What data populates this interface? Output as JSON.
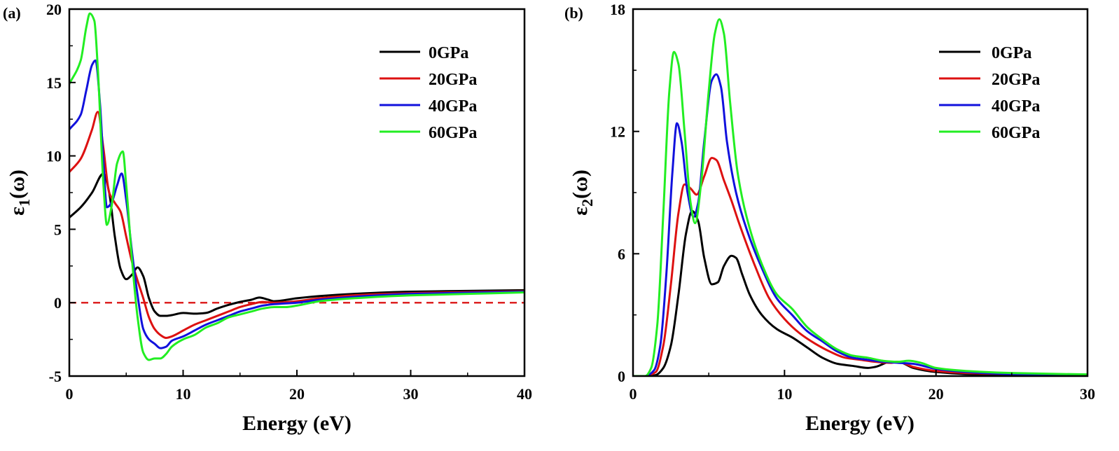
{
  "chart_data": [
    {
      "type": "line",
      "panel_label": "(a)",
      "ylabel": "ε1(ω)",
      "ylabel_parts": {
        "symbol": "ε",
        "subscript": "1",
        "suffix": "(ω)"
      },
      "xlabel": "Energy (eV)",
      "xlim": [
        0,
        40
      ],
      "ylim": [
        -5,
        20
      ],
      "xticks": [
        0,
        10,
        20,
        30,
        40
      ],
      "yticks": [
        -5,
        0,
        5,
        10,
        15,
        20
      ],
      "reference_line": {
        "y": 0,
        "style": "dashed",
        "color": "#dd2222"
      },
      "legend_position": "top-right",
      "series": [
        {
          "name": "0GPa",
          "color": "#000000",
          "x": [
            0,
            1,
            2,
            3,
            3.5,
            4,
            4.5,
            5,
            5.5,
            6,
            6.5,
            7,
            7.5,
            8,
            8.5,
            9,
            10,
            11,
            12,
            13,
            14,
            15,
            16,
            16.7,
            17.5,
            18,
            20,
            22,
            25,
            30,
            35,
            40
          ],
          "y": [
            5.8,
            6.5,
            7.5,
            8.8,
            7.5,
            4.5,
            2.3,
            1.6,
            1.9,
            2.4,
            1.8,
            0.3,
            -0.6,
            -0.9,
            -0.9,
            -0.85,
            -0.7,
            -0.75,
            -0.7,
            -0.4,
            -0.15,
            0.05,
            0.2,
            0.35,
            0.2,
            0.1,
            0.3,
            0.45,
            0.6,
            0.75,
            0.8,
            0.85
          ]
        },
        {
          "name": "20GPa",
          "color": "#dd1111",
          "x": [
            0,
            1,
            2,
            2.5,
            3,
            3.5,
            4,
            4.5,
            5,
            5.5,
            6,
            6.5,
            7,
            7.5,
            8,
            8.5,
            9,
            10,
            11,
            12,
            13,
            14,
            15,
            16,
            17,
            18,
            20,
            22,
            25,
            30,
            35,
            40
          ],
          "y": [
            8.9,
            9.8,
            11.8,
            13.0,
            10.5,
            7.5,
            6.8,
            6.2,
            4.5,
            2.8,
            1.5,
            0.3,
            -1.0,
            -1.8,
            -2.2,
            -2.4,
            -2.3,
            -1.9,
            -1.5,
            -1.2,
            -0.9,
            -0.6,
            -0.3,
            -0.1,
            0.05,
            0.0,
            0.1,
            0.3,
            0.5,
            0.65,
            0.72,
            0.78
          ]
        },
        {
          "name": "40GPa",
          "color": "#1111dd",
          "x": [
            0,
            1,
            1.5,
            2,
            2.3,
            2.7,
            3,
            3.3,
            3.7,
            4.2,
            4.6,
            5,
            5.5,
            6,
            6.5,
            7,
            7.5,
            8,
            8.5,
            9,
            10,
            11,
            12,
            13,
            14,
            15,
            16,
            17,
            18,
            20,
            22,
            25,
            30,
            35,
            40
          ],
          "y": [
            11.8,
            12.8,
            14.5,
            16.2,
            16.5,
            13.5,
            9.5,
            6.5,
            6.8,
            8.0,
            8.8,
            7.0,
            3.5,
            0.5,
            -1.8,
            -2.5,
            -2.8,
            -3.1,
            -3.0,
            -2.6,
            -2.3,
            -1.9,
            -1.5,
            -1.2,
            -0.9,
            -0.6,
            -0.4,
            -0.2,
            -0.1,
            0.0,
            0.2,
            0.4,
            0.6,
            0.68,
            0.75
          ]
        },
        {
          "name": "60GPa",
          "color": "#22ee22",
          "x": [
            0,
            1,
            1.5,
            1.8,
            2.2,
            2.5,
            3,
            3.3,
            3.7,
            4.2,
            4.7,
            5,
            5.5,
            6,
            6.5,
            7,
            7.5,
            8,
            8.5,
            9,
            10,
            11,
            12,
            13,
            14,
            15,
            16,
            17,
            18,
            19,
            20,
            22,
            25,
            30,
            35,
            40
          ],
          "y": [
            14.9,
            16.5,
            18.8,
            19.7,
            19.2,
            16.0,
            8.0,
            5.3,
            6.5,
            9.5,
            10.3,
            8.0,
            3.0,
            -1.0,
            -3.4,
            -3.9,
            -3.8,
            -3.8,
            -3.5,
            -3.0,
            -2.5,
            -2.2,
            -1.7,
            -1.4,
            -1.0,
            -0.8,
            -0.6,
            -0.4,
            -0.3,
            -0.3,
            -0.2,
            0.1,
            0.3,
            0.5,
            0.6,
            0.7
          ]
        }
      ]
    },
    {
      "type": "line",
      "panel_label": "(b)",
      "ylabel": "ε2(ω)",
      "ylabel_parts": {
        "symbol": "ε",
        "subscript": "2",
        "suffix": "(ω)"
      },
      "xlabel": "Energy (eV)",
      "xlim": [
        0,
        30
      ],
      "ylim": [
        0,
        18
      ],
      "xticks": [
        0,
        10,
        20,
        30
      ],
      "yticks": [
        0,
        6,
        12,
        18
      ],
      "legend_position": "top-right",
      "series": [
        {
          "name": "0GPa",
          "color": "#000000",
          "x": [
            0,
            1,
            1.5,
            2,
            2.5,
            3,
            3.5,
            3.9,
            4.3,
            4.7,
            5.2,
            5.6,
            6,
            6.5,
            6.8,
            7.2,
            7.7,
            8.5,
            9.5,
            10.5,
            11.5,
            12.5,
            13.5,
            14.5,
            15.5,
            16,
            17,
            17.5,
            18.5,
            20,
            22,
            25,
            30
          ],
          "y": [
            0,
            0,
            0.05,
            0.4,
            1.5,
            4.0,
            7.0,
            8.1,
            7.6,
            5.8,
            4.5,
            4.6,
            5.4,
            5.9,
            5.8,
            5.0,
            4.0,
            3.0,
            2.3,
            1.9,
            1.4,
            0.9,
            0.6,
            0.5,
            0.4,
            0.45,
            0.7,
            0.7,
            0.4,
            0.2,
            0.1,
            0.05,
            0.02
          ]
        },
        {
          "name": "20GPa",
          "color": "#dd1111",
          "x": [
            0,
            0.8,
            1.5,
            2,
            2.5,
            3,
            3.4,
            3.8,
            4.2,
            4.7,
            5.2,
            5.5,
            6,
            6.5,
            7,
            8,
            9,
            10,
            11,
            12,
            13,
            14,
            15,
            16,
            17,
            17.5,
            18.5,
            20,
            22,
            25,
            30
          ],
          "y": [
            0,
            0,
            0.2,
            1.5,
            4.5,
            8.0,
            9.4,
            9.2,
            8.9,
            9.8,
            10.7,
            10.6,
            9.6,
            8.6,
            7.5,
            5.5,
            3.8,
            2.8,
            2.1,
            1.6,
            1.2,
            0.9,
            0.8,
            0.7,
            0.65,
            0.7,
            0.45,
            0.25,
            0.15,
            0.1,
            0.05
          ]
        },
        {
          "name": "40GPa",
          "color": "#1111dd",
          "x": [
            0,
            0.8,
            1.4,
            1.8,
            2.2,
            2.6,
            2.9,
            3.2,
            3.6,
            4.0,
            4.3,
            4.7,
            5.2,
            5.5,
            5.8,
            6.2,
            6.8,
            7.5,
            8.5,
            9.5,
            10.5,
            11.5,
            12.5,
            13.5,
            14.5,
            15.5,
            16.5,
            17.5,
            18.5,
            20,
            22,
            25,
            30
          ],
          "y": [
            0,
            0,
            0.3,
            1.5,
            5.0,
            10.0,
            12.4,
            11.5,
            9.0,
            7.8,
            8.5,
            11.5,
            14.5,
            14.8,
            14.2,
            11.5,
            9.0,
            7.2,
            5.3,
            3.8,
            3.0,
            2.2,
            1.7,
            1.2,
            0.9,
            0.8,
            0.7,
            0.65,
            0.6,
            0.35,
            0.2,
            0.1,
            0.05
          ]
        },
        {
          "name": "60GPa",
          "color": "#22ee22",
          "x": [
            0,
            0.8,
            1.2,
            1.6,
            2.0,
            2.4,
            2.7,
            3.0,
            3.4,
            3.8,
            4.1,
            4.5,
            5.0,
            5.4,
            5.7,
            6.0,
            6.4,
            6.9,
            7.5,
            8.5,
            9.5,
            10.5,
            11.5,
            12.5,
            13.5,
            14.5,
            15.5,
            16.5,
            17.5,
            18.2,
            19,
            20,
            22,
            25,
            30
          ],
          "y": [
            0,
            0,
            0.4,
            2.5,
            8.0,
            14.0,
            15.9,
            15.3,
            12.0,
            8.5,
            7.5,
            9.5,
            14.0,
            16.8,
            17.5,
            16.8,
            13.5,
            10.0,
            7.8,
            5.5,
            4.0,
            3.3,
            2.4,
            1.8,
            1.3,
            1.0,
            0.9,
            0.75,
            0.7,
            0.75,
            0.65,
            0.4,
            0.25,
            0.15,
            0.08
          ]
        }
      ]
    }
  ]
}
